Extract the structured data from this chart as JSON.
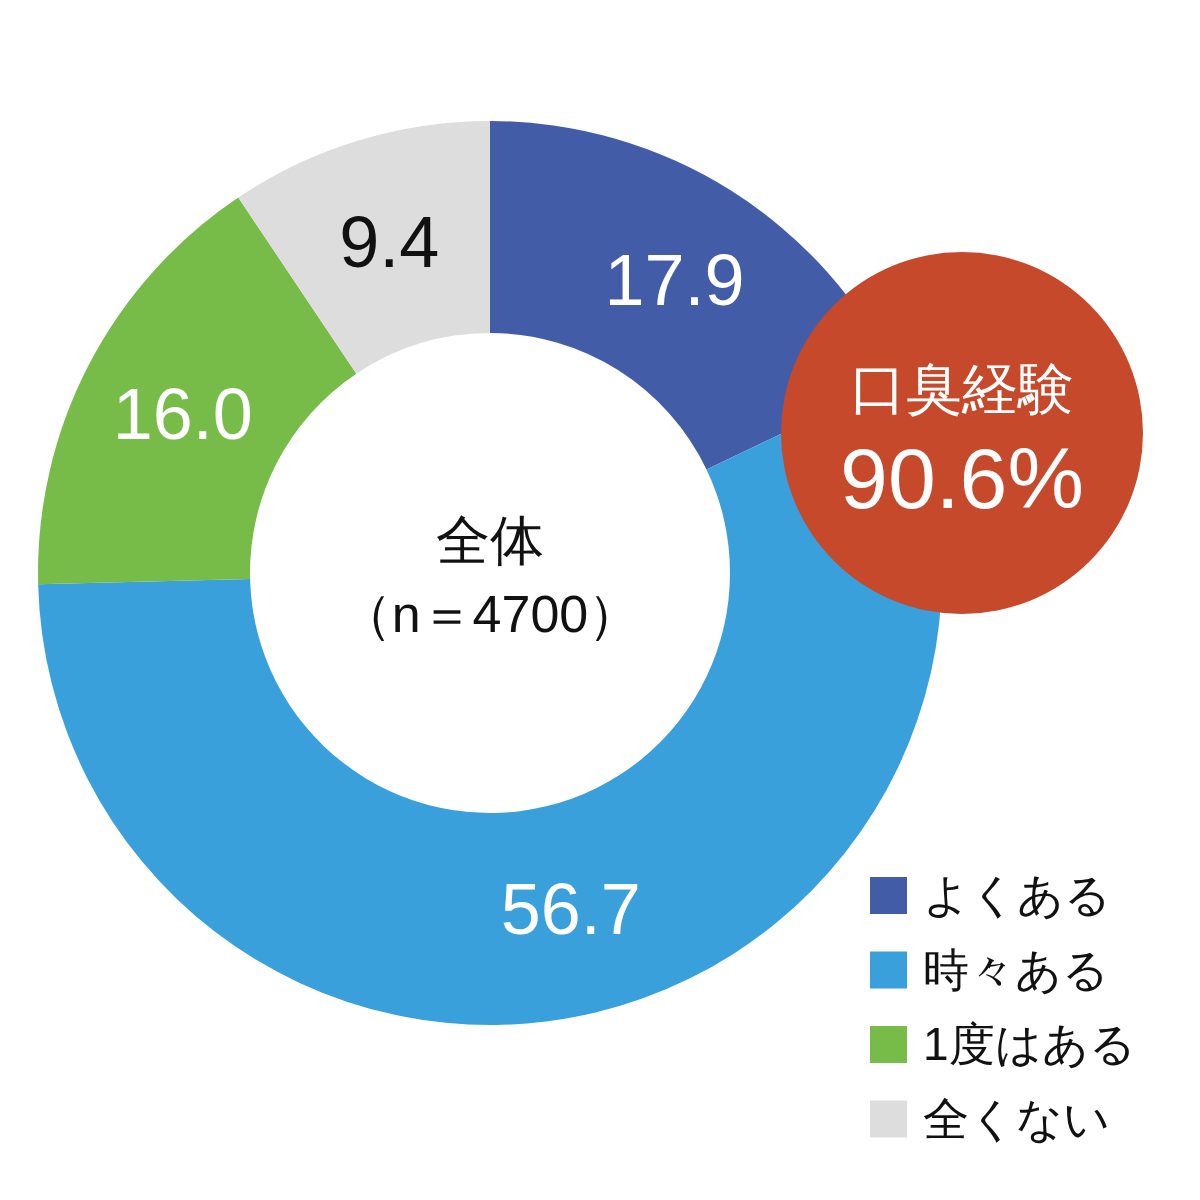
{
  "chart_data": {
    "type": "donut",
    "categories": [
      "よくある",
      "時々ある",
      "1度はある",
      "全くない"
    ],
    "values": [
      17.9,
      56.7,
      16.0,
      9.4
    ],
    "colors": [
      "#435ca8",
      "#3aa0db",
      "#77bc48",
      "#dddddd"
    ],
    "value_labels": [
      "17.9",
      "56.7",
      "16.0",
      "9.4"
    ],
    "legend": "bottom right",
    "annotations": [
      "全体",
      "（n＝4700）",
      "口臭経験",
      "90.6%"
    ]
  }
}
